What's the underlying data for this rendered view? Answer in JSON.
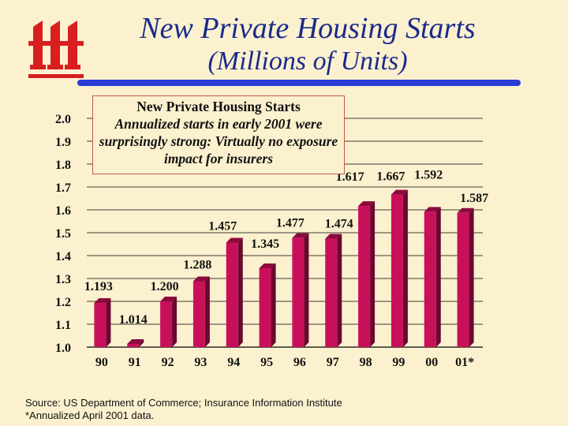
{
  "title": "New Private Housing Starts",
  "subtitle": "(Millions of Units)",
  "logo": {
    "icon": "iii-logo-icon",
    "color": "#d81e1e"
  },
  "callout": {
    "title": "New Private Housing Starts",
    "text": "Annualized starts in early 2001 were surprisingly strong: Virtually no exposure impact for insurers"
  },
  "footer": {
    "source": "Source: US Department of Commerce; Insurance Information Institute",
    "note": "*Annualized April 2001 data."
  },
  "colors": {
    "bar": "#c8105a",
    "bar_top": "#8c0a3e",
    "bar_side": "#6a0830",
    "title": "#1a2a8c",
    "rule": "#2a3bd6"
  },
  "chart_data": {
    "type": "bar",
    "categories": [
      "90",
      "91",
      "92",
      "93",
      "94",
      "95",
      "96",
      "97",
      "98",
      "99",
      "00",
      "01*"
    ],
    "values": [
      1.193,
      1.014,
      1.2,
      1.288,
      1.457,
      1.345,
      1.477,
      1.474,
      1.617,
      1.667,
      1.592,
      1.587
    ],
    "value_labels": [
      "1.193",
      "1.014",
      "1.200",
      "1.288",
      "1.457",
      "1.345",
      "1.477",
      "1.474",
      "1.617",
      "1.667",
      "1.592",
      "1.587"
    ],
    "y_ticks": [
      "1.0",
      "1.1",
      "1.2",
      "1.3",
      "1.4",
      "1.5",
      "1.6",
      "1.7",
      "1.8",
      "1.9",
      "2.0"
    ],
    "ylim": [
      1.0,
      2.0
    ],
    "grid": true
  }
}
